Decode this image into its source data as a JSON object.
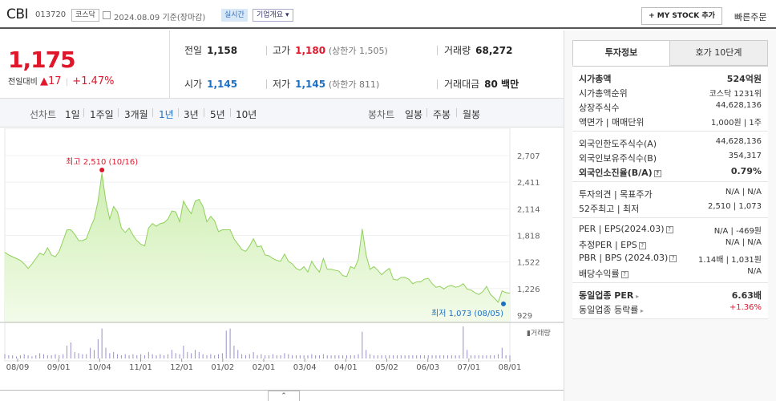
{
  "header": {
    "company": "CBI",
    "code": "013720",
    "market": "코스닥",
    "date": "2024.08.09",
    "date_basis": "기준(장마감)",
    "realtime": "실시간",
    "corp_overview": "기업개요",
    "mystock": "+ MY STOCK 추가",
    "quick_order": "빠른주문"
  },
  "price": {
    "current": "1,175",
    "change_label": "전일대비",
    "change_arrow": "▲",
    "change": "17",
    "change_pct": "+1.47%"
  },
  "summary": {
    "prev_close_label": "전일",
    "prev_close": "1,158",
    "high_label": "고가",
    "high": "1,180",
    "upper_limit": "(상한가 1,505)",
    "volume_label": "거래량",
    "volume": "68,272",
    "open_label": "시가",
    "open": "1,145",
    "low_label": "저가",
    "low": "1,145",
    "lower_limit": "(하한가 811)",
    "amount_label": "거래대금",
    "amount": "80 백만"
  },
  "periods": {
    "line_label": "선차트",
    "line_items": [
      "1일",
      "1주일",
      "3개월",
      "1년",
      "3년",
      "5년",
      "10년"
    ],
    "active_index": 3,
    "candle_label": "봉차트",
    "candle_items": [
      "일봉",
      "주봉",
      "월봉"
    ]
  },
  "chart_data": {
    "type": "area",
    "yticks": [
      "2,707",
      "2,411",
      "2,114",
      "1,818",
      "1,522",
      "1,226",
      "929"
    ],
    "xticks": [
      "08/09",
      "09/01",
      "10/04",
      "11/01",
      "12/01",
      "01/02",
      "02/01",
      "03/04",
      "04/01",
      "05/02",
      "06/03",
      "07/01",
      "08/01"
    ],
    "ylim": [
      929,
      2707
    ],
    "max_label": "최고 2,510 (10/16)",
    "min_label": "최저 1,073 (08/05)",
    "volume_label": "거래량",
    "values": [
      1630,
      1600,
      1580,
      1560,
      1540,
      1500,
      1450,
      1500,
      1560,
      1620,
      1600,
      1680,
      1600,
      1580,
      1640,
      1760,
      1880,
      1880,
      1830,
      1760,
      1760,
      1780,
      1900,
      2000,
      2200,
      2510,
      2200,
      2000,
      2140,
      2080,
      1900,
      1850,
      1900,
      1820,
      1760,
      1720,
      1700,
      1900,
      1950,
      1920,
      1950,
      1960,
      2000,
      2090,
      2080,
      1970,
      2200,
      2120,
      2060,
      2200,
      2220,
      2140,
      1970,
      2030,
      1980,
      1860,
      1880,
      1880,
      1880,
      1780,
      1720,
      1660,
      1640,
      1700,
      1780,
      1690,
      1700,
      1600,
      1590,
      1560,
      1540,
      1530,
      1610,
      1530,
      1500,
      1450,
      1430,
      1470,
      1410,
      1530,
      1460,
      1410,
      1560,
      1440,
      1440,
      1430,
      1420,
      1370,
      1360,
      1470,
      1450,
      1550,
      1890,
      1600,
      1440,
      1470,
      1430,
      1380,
      1420,
      1450,
      1330,
      1320,
      1350,
      1350,
      1330,
      1280,
      1300,
      1300,
      1330,
      1340,
      1280,
      1240,
      1250,
      1220,
      1250,
      1260,
      1240,
      1250,
      1280,
      1220,
      1210,
      1180,
      1160,
      1190,
      1250,
      1160,
      1120,
      1073,
      1200,
      1180,
      1175
    ],
    "volumes": [
      4,
      3,
      3,
      2,
      3,
      4,
      3,
      2,
      3,
      5,
      4,
      3,
      3,
      4,
      3,
      4,
      12,
      15,
      6,
      5,
      4,
      4,
      10,
      8,
      18,
      28,
      10,
      5,
      6,
      4,
      3,
      4,
      3,
      4,
      3,
      4,
      3,
      6,
      4,
      3,
      4,
      3,
      4,
      8,
      5,
      4,
      12,
      6,
      5,
      8,
      6,
      4,
      3,
      4,
      3,
      4,
      5,
      26,
      28,
      12,
      8,
      4,
      3,
      4,
      6,
      3,
      4,
      3,
      3,
      4,
      3,
      3,
      5,
      4,
      3,
      3,
      3,
      3,
      3,
      4,
      3,
      3,
      4,
      3,
      3,
      3,
      3,
      3,
      3,
      3,
      3,
      4,
      25,
      8,
      4,
      3,
      3,
      3,
      3,
      3,
      3,
      3,
      3,
      3,
      3,
      3,
      3,
      3,
      3,
      3,
      3,
      3,
      3,
      3,
      3,
      3,
      3,
      3,
      30,
      8,
      3,
      3,
      3,
      3,
      3,
      3,
      3,
      4,
      10,
      3,
      3
    ]
  },
  "invest": {
    "tab_on": "투자정보",
    "tab_off": "호가 10단계",
    "groups": [
      [
        {
          "k": "시가총액",
          "v": "524억원",
          "strong": true
        },
        {
          "k": "시가총액순위",
          "v": "코스닥 1231위"
        },
        {
          "k": "상장주식수",
          "v": "44,628,136"
        },
        {
          "k": "액면가 | 매매단위",
          "v": "1,000원 | 1주"
        }
      ],
      [
        {
          "k": "외국인한도주식수(A)",
          "v": "44,628,136"
        },
        {
          "k": "외국인보유주식수(B)",
          "v": "354,317"
        },
        {
          "k": "외국인소진율(B/A)",
          "v": "0.79%",
          "strong": true,
          "info": true
        }
      ],
      [
        {
          "k": "투자의견 | 목표주가",
          "v": "N/A | N/A"
        },
        {
          "k": "52주최고 | 최저",
          "v": "2,510 | 1,073"
        }
      ],
      [
        {
          "k": "PER | EPS(2024.03)",
          "v": "N/A | -469원",
          "info": true
        },
        {
          "k": "추정PER | EPS",
          "v": "N/A | N/A",
          "info": true
        },
        {
          "k": "PBR | BPS (2024.03)",
          "v": "1.14배 | 1,031원",
          "info": true
        },
        {
          "k": "배당수익률",
          "v": "N/A",
          "info": true
        }
      ],
      [
        {
          "k": "동일업종 PER",
          "v": "6.63배",
          "strong": true,
          "arrow": true
        },
        {
          "k": "동일업종 등락률",
          "v": "+1.36%",
          "red": true,
          "arrow": true
        }
      ]
    ]
  },
  "colors": {
    "up": "#e0162b",
    "down": "#1d6fc2",
    "area_fill": "#dff5c6",
    "area_line": "#8fd05a"
  }
}
